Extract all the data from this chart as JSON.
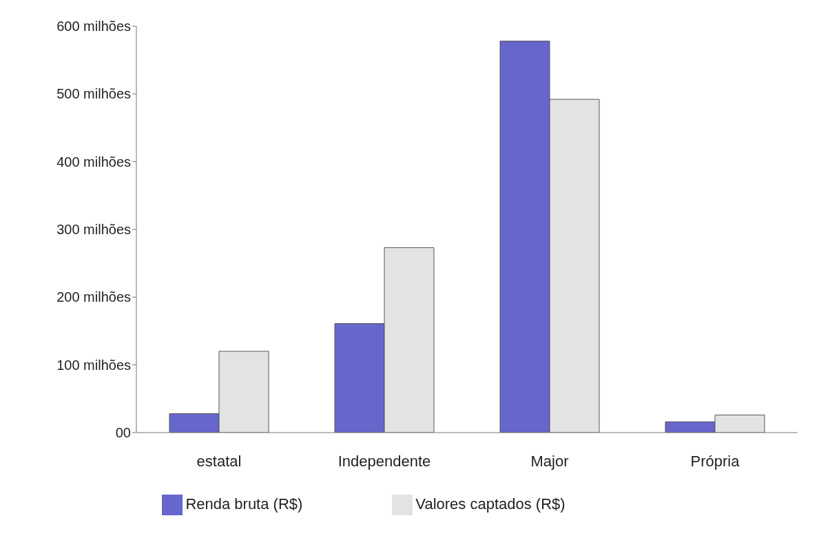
{
  "chart_data": {
    "type": "bar",
    "categories": [
      "estatal",
      "Independente",
      "Major",
      "Própria"
    ],
    "series": [
      {
        "name": "Renda bruta (R$)",
        "color": "#6666cc",
        "values": [
          28,
          161,
          578,
          16
        ]
      },
      {
        "name": "Valores captados (R$)",
        "color": "#e3e3e3",
        "values": [
          120,
          273,
          492,
          26
        ]
      }
    ],
    "ylim": [
      0,
      600
    ],
    "yticks": [
      {
        "value": 0,
        "label": "00"
      },
      {
        "value": 100,
        "label": "100 milhões"
      },
      {
        "value": 200,
        "label": "200 milhões"
      },
      {
        "value": 300,
        "label": "300 milhões"
      },
      {
        "value": 400,
        "label": "400 milhões"
      },
      {
        "value": 500,
        "label": "500 milhões"
      },
      {
        "value": 600,
        "label": "600 milhões"
      }
    ],
    "grid": false,
    "legend": "bottom"
  }
}
